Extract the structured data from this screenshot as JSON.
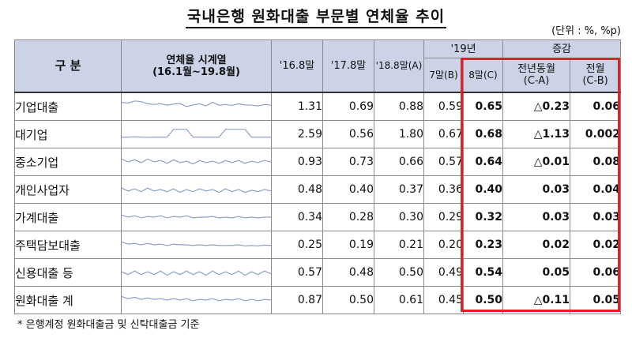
{
  "title": "국내은행 원화대출 부문별 연체율 추이",
  "unit": "(단위 : %, %p)",
  "header": {
    "category": "구  분",
    "series": "연체율 시계열\n(16.1월~19.8월)",
    "c1": "'16.8말",
    "c2": "'17.8말",
    "c3": "'18.8말(A)",
    "group19": "'19년",
    "c4": "7말(B)",
    "c5": "8말(C)",
    "group_change": "증감",
    "c6": "전년동월\n(C-A)",
    "c7": "전월\n(C-B)"
  },
  "rows": [
    {
      "label": "기업대출",
      "v16": "1.31",
      "v17": "0.69",
      "v18": "0.88",
      "jul": "0.59",
      "aug": "0.65",
      "yoy": "△0.23",
      "mom": "0.06",
      "series": [
        0.8,
        0.75,
        0.9,
        0.85,
        0.7,
        0.65,
        0.7,
        0.6,
        0.68,
        0.72,
        0.5,
        0.62,
        0.7,
        0.55,
        0.8,
        0.6,
        0.65,
        0.58,
        0.7,
        0.62,
        0.6,
        0.55,
        0.65,
        0.6
      ]
    },
    {
      "label": "대기업",
      "v16": "2.59",
      "v17": "0.56",
      "v18": "1.80",
      "jul": "0.67",
      "aug": "0.68",
      "yoy": "△1.13",
      "mom": "0.002",
      "series": [
        0.3,
        0.3,
        0.32,
        0.3,
        0.28,
        0.3,
        0.3,
        0.3,
        0.85,
        0.85,
        0.85,
        0.3,
        0.3,
        0.3,
        0.3,
        0.3,
        0.85,
        0.85,
        0.85,
        0.85,
        0.3,
        0.3,
        0.3,
        0.3
      ]
    },
    {
      "label": "중소기업",
      "v16": "0.93",
      "v17": "0.73",
      "v18": "0.66",
      "jul": "0.57",
      "aug": "0.64",
      "yoy": "△0.01",
      "mom": "0.08",
      "series": [
        0.7,
        0.5,
        0.65,
        0.45,
        0.7,
        0.5,
        0.6,
        0.4,
        0.65,
        0.45,
        0.55,
        0.35,
        0.6,
        0.45,
        0.55,
        0.4,
        0.6,
        0.45,
        0.6,
        0.4,
        0.55,
        0.45,
        0.6,
        0.5
      ]
    },
    {
      "label": "개인사업자",
      "v16": "0.48",
      "v17": "0.40",
      "v18": "0.37",
      "jul": "0.36",
      "aug": "0.40",
      "yoy": "0.03",
      "mom": "0.04",
      "series": [
        0.6,
        0.4,
        0.55,
        0.35,
        0.6,
        0.4,
        0.5,
        0.35,
        0.55,
        0.3,
        0.5,
        0.35,
        0.55,
        0.4,
        0.5,
        0.3,
        0.55,
        0.35,
        0.5,
        0.3,
        0.45,
        0.35,
        0.5,
        0.4
      ]
    },
    {
      "label": "가계대출",
      "v16": "0.34",
      "v17": "0.28",
      "v18": "0.30",
      "jul": "0.29",
      "aug": "0.32",
      "yoy": "0.03",
      "mom": "0.03",
      "series": [
        0.65,
        0.5,
        0.6,
        0.45,
        0.55,
        0.5,
        0.6,
        0.45,
        0.55,
        0.5,
        0.6,
        0.45,
        0.5,
        0.5,
        0.55,
        0.45,
        0.5,
        0.45,
        0.55,
        0.45,
        0.5,
        0.45,
        0.5,
        0.5
      ]
    },
    {
      "label": "주택담보대출",
      "v16": "0.25",
      "v17": "0.19",
      "v18": "0.21",
      "jul": "0.20",
      "aug": "0.23",
      "yoy": "0.02",
      "mom": "0.02",
      "series": [
        0.7,
        0.55,
        0.6,
        0.5,
        0.6,
        0.5,
        0.55,
        0.45,
        0.55,
        0.5,
        0.5,
        0.45,
        0.5,
        0.45,
        0.5,
        0.45,
        0.45,
        0.45,
        0.5,
        0.42,
        0.45,
        0.42,
        0.48,
        0.45
      ]
    },
    {
      "label": "신용대출 등",
      "v16": "0.57",
      "v17": "0.48",
      "v18": "0.50",
      "jul": "0.49",
      "aug": "0.54",
      "yoy": "0.05",
      "mom": "0.06",
      "series": [
        0.55,
        0.35,
        0.6,
        0.35,
        0.55,
        0.35,
        0.6,
        0.3,
        0.55,
        0.35,
        0.6,
        0.35,
        0.55,
        0.3,
        0.6,
        0.35,
        0.55,
        0.35,
        0.6,
        0.3,
        0.55,
        0.35,
        0.6,
        0.4
      ]
    },
    {
      "label": "원화대출 계",
      "v16": "0.87",
      "v17": "0.50",
      "v18": "0.61",
      "jul": "0.45",
      "aug": "0.50",
      "yoy": "△0.11",
      "mom": "0.05",
      "series": [
        0.75,
        0.6,
        0.7,
        0.55,
        0.65,
        0.55,
        0.6,
        0.5,
        0.6,
        0.5,
        0.6,
        0.45,
        0.55,
        0.5,
        0.6,
        0.45,
        0.55,
        0.5,
        0.6,
        0.45,
        0.55,
        0.45,
        0.55,
        0.5
      ]
    }
  ],
  "footnote": "* 은행계정 원화대출금 및 신탁대출금 기준",
  "colors": {
    "header_bg": "#ccd3e6",
    "sparkline": "#8fa0c8",
    "highlight": "#e01f26"
  }
}
